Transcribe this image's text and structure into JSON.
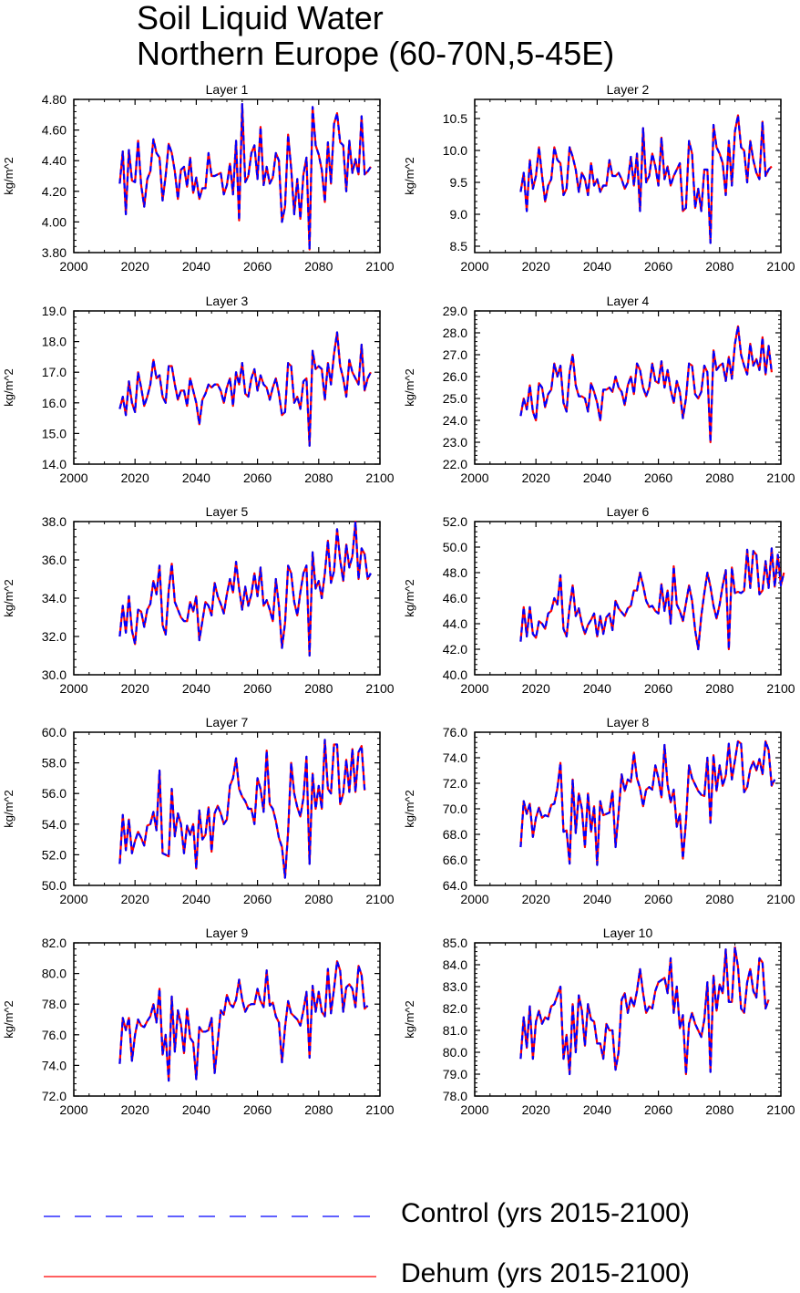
{
  "title": {
    "line1": "Soil Liquid Water",
    "line2": "Northern Europe (60-70N,5-45E)"
  },
  "legend": [
    {
      "label": "Control (yrs 2015-2100)",
      "color": "#0000ff",
      "style": "dashed"
    },
    {
      "label": "Dehum (yrs 2015-2100)",
      "color": "#ff0000",
      "style": "solid"
    }
  ],
  "chart_data": [
    {
      "type": "line",
      "title": "Layer 1",
      "ylabel": "kg/m^2",
      "xlim": [
        2000,
        2100
      ],
      "ylim": [
        3.8,
        4.8
      ],
      "xticks": [
        "2000",
        "2020",
        "2040",
        "2060",
        "2080",
        "2100"
      ],
      "yticks": [
        "3.80",
        "4.00",
        "4.20",
        "4.40",
        "4.60",
        "4.80"
      ],
      "x_start": 2015,
      "values": [
        4.25,
        4.46,
        4.05,
        4.47,
        4.27,
        4.26,
        4.53,
        4.24,
        4.1,
        4.28,
        4.33,
        4.54,
        4.45,
        4.42,
        4.14,
        4.3,
        4.51,
        4.45,
        4.33,
        4.15,
        4.34,
        4.36,
        4.23,
        4.42,
        4.19,
        4.29,
        4.15,
        4.22,
        4.22,
        4.45,
        4.3,
        4.3,
        4.31,
        4.32,
        4.18,
        4.24,
        4.38,
        4.18,
        4.53,
        4.01,
        4.77,
        4.26,
        4.3,
        4.45,
        4.5,
        4.28,
        4.62,
        4.24,
        4.36,
        4.25,
        4.29,
        4.45,
        4.4,
        4.0,
        4.1,
        4.57,
        4.35,
        4.05,
        4.28,
        4.02,
        4.31,
        4.42,
        3.82,
        4.75,
        4.5,
        4.44,
        4.34,
        4.13,
        4.52,
        4.25,
        4.64,
        4.71,
        4.52,
        4.5,
        4.2,
        4.53,
        4.32,
        4.41,
        4.31,
        4.69,
        4.31,
        4.33,
        4.36
      ],
      "series": [
        {
          "name": "Control (yrs 2015-2100)"
        },
        {
          "name": "Dehum (yrs 2015-2100)"
        }
      ]
    },
    {
      "type": "line",
      "title": "Layer 2",
      "ylabel": "kg/m^2",
      "xlim": [
        2000,
        2100
      ],
      "ylim": [
        8.4,
        10.8
      ],
      "xticks": [
        "2000",
        "2020",
        "2040",
        "2060",
        "2080",
        "2100"
      ],
      "yticks": [
        "8.5",
        "9.0",
        "9.5",
        "10.0",
        "10.5"
      ],
      "x_start": 2015,
      "values": [
        9.35,
        9.65,
        9.05,
        9.85,
        9.4,
        9.6,
        10.05,
        9.6,
        9.2,
        9.45,
        9.55,
        10.05,
        9.85,
        9.8,
        9.3,
        9.4,
        10.05,
        9.9,
        9.7,
        9.35,
        9.65,
        9.55,
        9.3,
        9.8,
        9.45,
        9.55,
        9.35,
        9.45,
        9.45,
        9.85,
        9.6,
        9.6,
        9.65,
        9.55,
        9.4,
        9.5,
        9.9,
        9.45,
        9.95,
        9.05,
        10.35,
        9.5,
        9.6,
        9.95,
        9.75,
        9.45,
        10.2,
        9.55,
        9.75,
        9.45,
        9.6,
        9.7,
        9.8,
        9.05,
        9.1,
        10.15,
        9.95,
        9.1,
        9.4,
        9.05,
        9.7,
        9.7,
        8.55,
        10.4,
        10.05,
        9.95,
        9.8,
        9.3,
        10.15,
        9.45,
        10.3,
        10.55,
        10.05,
        10.0,
        9.5,
        10.15,
        9.85,
        9.65,
        9.55,
        10.45,
        9.6,
        9.7,
        9.75
      ],
      "series": [
        {
          "name": "Control (yrs 2015-2100)"
        },
        {
          "name": "Dehum (yrs 2015-2100)"
        }
      ]
    },
    {
      "type": "line",
      "title": "Layer 3",
      "ylabel": "kg/m^2",
      "xlim": [
        2000,
        2100
      ],
      "ylim": [
        14.0,
        19.0
      ],
      "xticks": [
        "2000",
        "2020",
        "2040",
        "2060",
        "2080",
        "2100"
      ],
      "yticks": [
        "14.0",
        "15.0",
        "16.0",
        "17.0",
        "18.0",
        "19.0"
      ],
      "x_start": 2015,
      "values": [
        15.8,
        16.2,
        15.6,
        16.7,
        16.0,
        15.7,
        17.0,
        16.5,
        15.9,
        16.2,
        16.6,
        17.4,
        16.8,
        16.9,
        16.2,
        16.0,
        17.2,
        17.2,
        16.6,
        16.1,
        16.4,
        16.4,
        15.9,
        16.8,
        16.4,
        16.0,
        15.3,
        16.1,
        16.3,
        16.6,
        16.5,
        16.6,
        16.6,
        16.4,
        16.0,
        16.5,
        16.8,
        15.9,
        17.0,
        16.6,
        17.3,
        16.3,
        16.2,
        16.8,
        17.1,
        16.4,
        16.9,
        16.6,
        16.5,
        16.1,
        16.5,
        16.8,
        16.3,
        15.6,
        15.7,
        17.3,
        17.2,
        16.0,
        16.2,
        15.8,
        16.7,
        16.8,
        14.6,
        17.7,
        17.1,
        17.2,
        17.1,
        16.1,
        17.3,
        16.6,
        17.6,
        18.3,
        17.2,
        16.8,
        16.2,
        17.4,
        17.0,
        16.8,
        16.6,
        17.9,
        16.4,
        16.8,
        17.0
      ],
      "series": [
        {
          "name": "Control (yrs 2015-2100)"
        },
        {
          "name": "Dehum (yrs 2015-2100)"
        }
      ]
    },
    {
      "type": "line",
      "title": "Layer 4",
      "ylabel": "kg/m^2",
      "xlim": [
        2000,
        2100
      ],
      "ylim": [
        22.0,
        29.0
      ],
      "xticks": [
        "2000",
        "2020",
        "2040",
        "2060",
        "2080",
        "2100"
      ],
      "yticks": [
        "22.0",
        "23.0",
        "24.0",
        "25.0",
        "26.0",
        "27.0",
        "28.0",
        "29.0"
      ],
      "x_start": 2015,
      "values": [
        24.2,
        25.0,
        24.5,
        25.6,
        24.4,
        24.0,
        25.7,
        25.5,
        24.6,
        25.2,
        25.4,
        26.6,
        26.0,
        26.5,
        24.8,
        24.4,
        26.2,
        27.0,
        25.6,
        25.1,
        25.1,
        25.0,
        24.4,
        25.7,
        25.3,
        24.8,
        24.0,
        25.4,
        25.4,
        25.5,
        25.3,
        26.0,
        25.5,
        25.3,
        24.7,
        25.6,
        26.0,
        25.2,
        26.6,
        26.3,
        25.5,
        25.1,
        25.5,
        26.6,
        25.8,
        25.7,
        26.7,
        25.5,
        26.3,
        25.4,
        24.8,
        25.8,
        25.3,
        24.1,
        25.0,
        26.6,
        26.5,
        25.2,
        25.0,
        25.3,
        26.5,
        26.2,
        23.0,
        27.2,
        26.3,
        26.5,
        26.6,
        25.8,
        26.9,
        25.9,
        27.5,
        28.3,
        27.0,
        26.5,
        26.1,
        27.5,
        26.5,
        26.8,
        26.3,
        27.8,
        26.1,
        27.4,
        26.2
      ],
      "series": [
        {
          "name": "Control (yrs 2015-2100)"
        },
        {
          "name": "Dehum (yrs 2015-2100)"
        }
      ]
    },
    {
      "type": "line",
      "title": "Layer 5",
      "ylabel": "kg/m^2",
      "xlim": [
        2000,
        2100
      ],
      "ylim": [
        30.0,
        38.0
      ],
      "xticks": [
        "2000",
        "2020",
        "2040",
        "2060",
        "2080",
        "2100"
      ],
      "yticks": [
        "30.0",
        "32.0",
        "34.0",
        "36.0",
        "38.0"
      ],
      "x_start": 2015,
      "values": [
        32.0,
        33.6,
        32.2,
        34.1,
        32.3,
        31.6,
        33.4,
        33.3,
        32.5,
        33.4,
        33.7,
        34.9,
        34.2,
        35.7,
        32.6,
        32.1,
        34.4,
        35.8,
        33.8,
        33.4,
        33.0,
        32.8,
        32.8,
        33.8,
        33.3,
        34.1,
        31.8,
        32.8,
        33.8,
        33.6,
        33.1,
        34.8,
        34.1,
        33.7,
        33.2,
        34.2,
        35.0,
        34.3,
        35.9,
        34.5,
        33.4,
        34.6,
        33.6,
        34.2,
        35.3,
        34.1,
        35.6,
        33.6,
        33.9,
        33.4,
        32.8,
        35.0,
        33.6,
        31.4,
        32.7,
        35.7,
        35.3,
        33.8,
        33.1,
        34.3,
        35.3,
        35.7,
        31.0,
        36.4,
        34.5,
        34.9,
        34.0,
        35.3,
        37.0,
        34.8,
        35.4,
        37.6,
        36.0,
        34.9,
        36.8,
        35.6,
        36.2,
        38.0,
        35.0,
        36.6,
        36.3,
        35.0,
        35.3
      ],
      "series": [
        {
          "name": "Control (yrs 2015-2100)"
        },
        {
          "name": "Dehum (yrs 2015-2100)"
        }
      ]
    },
    {
      "type": "line",
      "title": "Layer 6",
      "ylabel": "kg/m^2",
      "xlim": [
        2000,
        2100
      ],
      "ylim": [
        40.0,
        52.0
      ],
      "xticks": [
        "2000",
        "2020",
        "2040",
        "2060",
        "2080",
        "2100"
      ],
      "yticks": [
        "40.0",
        "42.0",
        "44.0",
        "46.0",
        "48.0",
        "50.0",
        "52.0"
      ],
      "x_start": 2015,
      "values": [
        42.6,
        45.3,
        43.0,
        45.3,
        43.2,
        42.9,
        44.2,
        44.0,
        43.6,
        44.8,
        45.0,
        46.0,
        45.5,
        47.8,
        43.6,
        43.0,
        45.3,
        47.0,
        44.6,
        45.2,
        44.0,
        43.2,
        43.9,
        44.3,
        44.8,
        43.0,
        44.6,
        43.2,
        44.5,
        44.8,
        43.5,
        45.8,
        45.2,
        44.9,
        44.6,
        45.2,
        45.4,
        46.6,
        46.6,
        48.0,
        47.0,
        45.8,
        45.3,
        45.4,
        45.0,
        44.8,
        47.1,
        45.0,
        46.6,
        44.0,
        48.5,
        45.5,
        45.0,
        44.2,
        45.6,
        47.0,
        45.8,
        43.5,
        42.0,
        44.6,
        46.4,
        48.0,
        46.9,
        45.4,
        44.4,
        45.5,
        47.0,
        48.2,
        42.0,
        48.4,
        46.4,
        46.5,
        46.4,
        46.6,
        49.8,
        46.8,
        49.7,
        49.4,
        46.3,
        46.6,
        48.9,
        46.8,
        49.9,
        46.9,
        49.4,
        47.0,
        48.0
      ],
      "series": [
        {
          "name": "Control (yrs 2015-2100)"
        },
        {
          "name": "Dehum (yrs 2015-2100)"
        }
      ]
    },
    {
      "type": "line",
      "title": "Layer 7",
      "ylabel": "kg/m^2",
      "xlim": [
        2000,
        2100
      ],
      "ylim": [
        50.0,
        60.0
      ],
      "xticks": [
        "2000",
        "2020",
        "2040",
        "2060",
        "2080",
        "2100"
      ],
      "yticks": [
        "50.0",
        "52.0",
        "54.0",
        "56.0",
        "58.0",
        "60.0"
      ],
      "x_start": 2015,
      "values": [
        51.4,
        54.6,
        52.3,
        54.3,
        52.1,
        52.9,
        53.5,
        53.1,
        52.6,
        53.9,
        54.0,
        54.8,
        53.6,
        57.5,
        52.1,
        52.0,
        51.9,
        56.3,
        53.2,
        54.7,
        54.0,
        52.1,
        53.9,
        53.3,
        54.0,
        51.1,
        54.9,
        53.0,
        53.3,
        55.1,
        52.2,
        54.7,
        55.2,
        54.7,
        54.0,
        54.3,
        56.5,
        57.0,
        58.3,
        56.3,
        55.8,
        55.5,
        55.0,
        55.0,
        54.0,
        57.0,
        56.3,
        54.8,
        58.8,
        55.3,
        55.0,
        54.2,
        53.1,
        52.5,
        50.5,
        53.5,
        58.0,
        56.0,
        55.1,
        54.5,
        55.7,
        58.4,
        51.4,
        57.3,
        55.0,
        56.5,
        55.0,
        59.5,
        56.3,
        56.0,
        59.2,
        59.2,
        55.3,
        56.0,
        58.2,
        56.1,
        58.9,
        56.1,
        58.7,
        59.1,
        56.2
      ],
      "series": [
        {
          "name": "Control (yrs 2015-2100)"
        },
        {
          "name": "Dehum (yrs 2015-2100)"
        }
      ]
    },
    {
      "type": "line",
      "title": "Layer 8",
      "ylabel": "kg/m^2",
      "xlim": [
        2000,
        2100
      ],
      "ylim": [
        64.0,
        76.0
      ],
      "xticks": [
        "2000",
        "2020",
        "2040",
        "2060",
        "2080",
        "2100"
      ],
      "yticks": [
        "64.0",
        "66.0",
        "68.0",
        "70.0",
        "72.0",
        "74.0",
        "76.0"
      ],
      "x_start": 2015,
      "values": [
        67.0,
        70.6,
        69.6,
        70.4,
        67.8,
        69.3,
        70.1,
        69.3,
        69.5,
        69.4,
        70.3,
        70.4,
        71.6,
        73.6,
        68.2,
        68.3,
        65.7,
        72.3,
        68.1,
        71.2,
        70.0,
        67.0,
        71.2,
        68.2,
        70.2,
        65.6,
        70.6,
        69.5,
        69.6,
        69.7,
        71.4,
        67.0,
        69.7,
        72.7,
        71.4,
        72.3,
        72.1,
        74.4,
        72.4,
        71.6,
        70.2,
        71.5,
        71.7,
        71.5,
        73.4,
        72.4,
        70.9,
        75.0,
        71.9,
        70.5,
        71.5,
        68.6,
        69.6,
        66.1,
        69.0,
        73.4,
        72.4,
        71.9,
        71.4,
        71.1,
        71.0,
        74.0,
        68.9,
        74.2,
        71.4,
        73.4,
        71.8,
        72.6,
        75.1,
        72.3,
        73.8,
        75.3,
        75.1,
        71.3,
        71.7,
        73.1,
        73.7,
        73.0,
        73.9,
        72.7,
        75.3,
        74.6,
        71.8,
        72.3
      ],
      "series": [
        {
          "name": "Control (yrs 2015-2100)"
        },
        {
          "name": "Dehum (yrs 2015-2100)"
        }
      ]
    },
    {
      "type": "line",
      "title": "Layer 9",
      "ylabel": "kg/m^2",
      "xlim": [
        2000,
        2100
      ],
      "ylim": [
        72.0,
        82.0
      ],
      "xticks": [
        "2000",
        "2020",
        "2040",
        "2060",
        "2080",
        "2100"
      ],
      "yticks": [
        "72.0",
        "74.0",
        "76.0",
        "78.0",
        "80.0",
        "82.0"
      ],
      "x_start": 2015,
      "values": [
        74.1,
        77.1,
        76.3,
        77.1,
        74.3,
        76.0,
        77.0,
        76.6,
        76.5,
        76.9,
        77.2,
        78.0,
        76.8,
        79.0,
        74.7,
        76.0,
        73.0,
        78.5,
        74.9,
        77.6,
        76.7,
        74.8,
        77.7,
        75.8,
        75.5,
        73.1,
        76.5,
        76.2,
        76.2,
        76.3,
        77.1,
        73.5,
        75.5,
        77.6,
        77.3,
        78.6,
        78.0,
        77.8,
        78.3,
        79.6,
        78.3,
        77.5,
        77.9,
        78.0,
        78.0,
        79.0,
        78.2,
        77.8,
        80.2,
        77.9,
        78.1,
        77.2,
        76.8,
        74.2,
        76.5,
        78.2,
        77.4,
        77.2,
        77.0,
        76.6,
        77.6,
        78.8,
        74.5,
        79.2,
        77.5,
        78.8,
        77.5,
        77.2,
        80.3,
        77.4,
        79.0,
        80.8,
        80.2,
        77.5,
        79.1,
        79.3,
        79.0,
        77.8,
        80.5,
        79.9,
        77.7,
        77.9
      ],
      "series": [
        {
          "name": "Control (yrs 2015-2100)"
        },
        {
          "name": "Dehum (yrs 2015-2100)"
        }
      ]
    },
    {
      "type": "line",
      "title": "Layer 10",
      "ylabel": "kg/m^2",
      "xlim": [
        2000,
        2100
      ],
      "ylim": [
        78.0,
        85.0
      ],
      "xticks": [
        "2000",
        "2020",
        "2040",
        "2060",
        "2080",
        "2100"
      ],
      "yticks": [
        "78.0",
        "79.0",
        "80.0",
        "81.0",
        "82.0",
        "83.0",
        "84.0",
        "85.0"
      ],
      "x_start": 2015,
      "values": [
        79.7,
        81.6,
        80.2,
        82.1,
        79.7,
        81.4,
        81.9,
        81.3,
        81.6,
        81.5,
        82.1,
        82.2,
        82.6,
        83.0,
        79.7,
        80.8,
        79.0,
        82.2,
        80.0,
        82.6,
        81.9,
        80.3,
        82.2,
        81.5,
        81.4,
        80.4,
        80.4,
        79.7,
        81.3,
        81.0,
        81.0,
        79.2,
        80.0,
        82.4,
        82.7,
        81.8,
        82.5,
        82.1,
        82.8,
        83.8,
        82.7,
        81.8,
        82.1,
        82.0,
        82.8,
        83.2,
        83.3,
        83.4,
        82.7,
        84.3,
        81.8,
        83.0,
        81.1,
        81.7,
        79.0,
        81.3,
        81.8,
        81.3,
        81.0,
        80.7,
        81.5,
        83.2,
        79.1,
        83.5,
        81.9,
        83.1,
        82.7,
        84.7,
        82.3,
        82.3,
        84.8,
        83.9,
        82.0,
        81.8,
        83.2,
        83.8,
        82.8,
        82.5,
        84.3,
        84.1,
        82.0,
        82.4
      ],
      "series": [
        {
          "name": "Control (yrs 2015-2100)"
        },
        {
          "name": "Dehum (yrs 2015-2100)"
        }
      ]
    }
  ]
}
